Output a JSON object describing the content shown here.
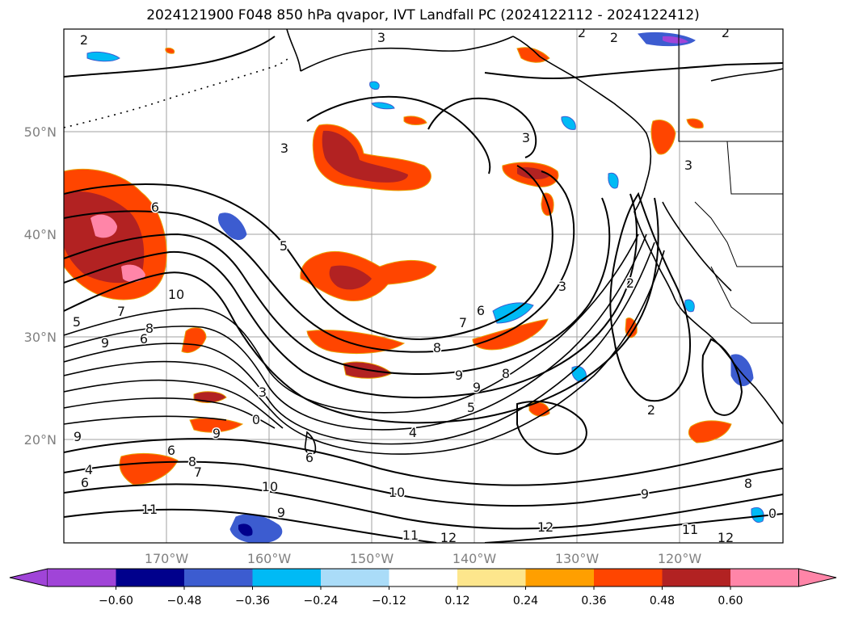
{
  "title": "2024121900 F048 850 hPa qvapor, IVT Landfall PC (2024122112 - 2024122412)",
  "latitude_labels": [
    "50°N",
    "40°N",
    "30°N",
    "20°N"
  ],
  "longitude_labels": [
    "170°W",
    "160°W",
    "150°W",
    "140°W",
    "130°W",
    "120°W"
  ],
  "colorbar": {
    "tick_labels": [
      "−0.60",
      "−0.48",
      "−0.36",
      "−0.24",
      "−0.12",
      "0.12",
      "0.24",
      "0.36",
      "0.48",
      "0.60"
    ],
    "colors": [
      "#a044d8",
      "#00008c",
      "#3c5cd0",
      "#00baf5",
      "#aadcf8",
      "#ffffff",
      "#fde68c",
      "#ff9f00",
      "#ff4500",
      "#b22222",
      "#ff85a8"
    ]
  },
  "contour_labels": [
    "2",
    "3",
    "2",
    "2",
    "2",
    "3",
    "3",
    "6",
    "5",
    "10",
    "7",
    "9",
    "8",
    "6",
    "5",
    "7",
    "6",
    "3",
    "8",
    "9",
    "9",
    "8",
    "3",
    "5",
    "0",
    "4",
    "9",
    "6",
    "6",
    "8",
    "9",
    "4",
    "6",
    "7",
    "10",
    "11",
    "10",
    "9",
    "11",
    "12",
    "12",
    "9",
    "11",
    "12",
    "8",
    "0",
    "2",
    "3",
    "2"
  ],
  "shading_colors": {
    "pos_low": "#fde68c",
    "pos_mid": "#ff4500",
    "pos_high": "#b22222",
    "pos_max": "#ff85a8",
    "neg_low": "#aadcf8",
    "neg_mid": "#00baf5",
    "neg_high": "#3c5cd0",
    "neg_max": "#00008c",
    "neg_extreme": "#a044d8"
  }
}
